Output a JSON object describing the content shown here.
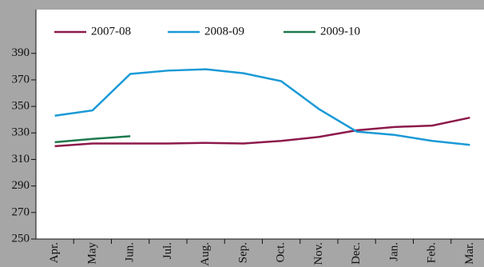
{
  "chart_data": {
    "type": "line",
    "categories": [
      "Apr.",
      "May",
      "Jun.",
      "Jul.",
      "Aug.",
      "Sep.",
      "Oct.",
      "Nov.",
      "Dec.",
      "Jan.",
      "Feb.",
      "Mar."
    ],
    "series": [
      {
        "name": "2007-08",
        "color": "#8c1a4b",
        "values": [
          320,
          322,
          322,
          322,
          322.5,
          322,
          324,
          327,
          332,
          334.5,
          335.5,
          341.5
        ]
      },
      {
        "name": "2008-09",
        "color": "#1b9ad6",
        "values": [
          343,
          347,
          374.5,
          377,
          378,
          375,
          369,
          348,
          331,
          328.5,
          324,
          321
        ]
      },
      {
        "name": "2009-10",
        "color": "#1d7a4c",
        "values": [
          323,
          325.5,
          327.5,
          null,
          null,
          null,
          null,
          null,
          null,
          null,
          null,
          null
        ]
      }
    ],
    "ylim": [
      250,
      423
    ],
    "yticks": [
      250,
      270,
      290,
      310,
      330,
      350,
      370,
      390
    ],
    "legend": "top"
  }
}
